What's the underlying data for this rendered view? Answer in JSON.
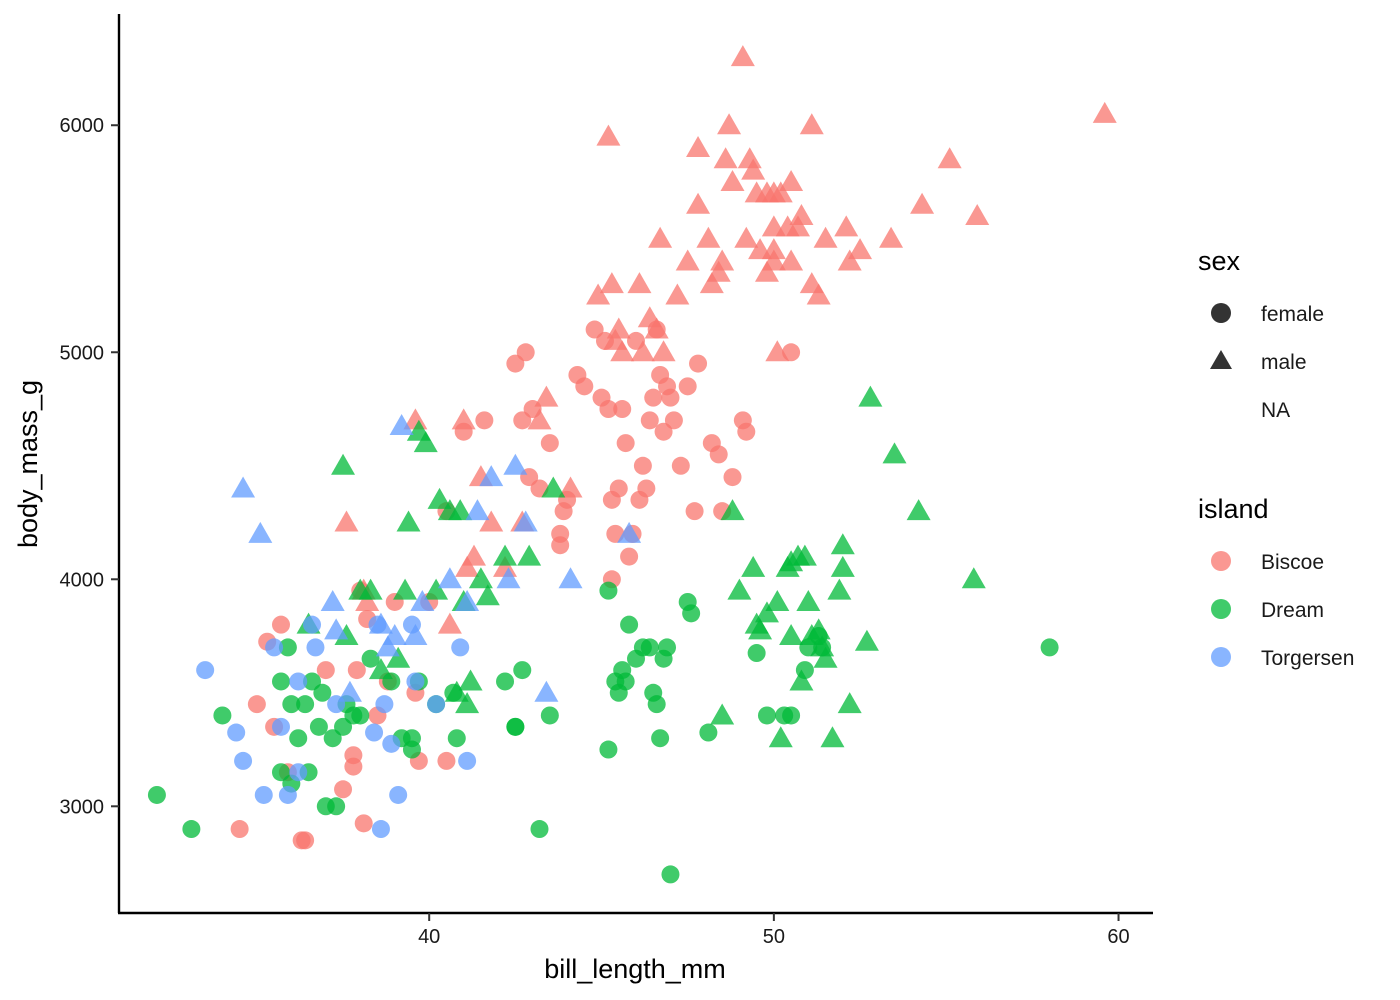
{
  "chart_data": {
    "type": "scatter",
    "xlabel": "bill_length_mm",
    "ylabel": "body_mass_g",
    "x_ticks": [
      40,
      50,
      60
    ],
    "y_ticks": [
      3000,
      4000,
      5000,
      6000
    ],
    "xlim": [
      31.0,
      61.0
    ],
    "ylim": [
      2530,
      6490
    ],
    "grid": false,
    "colors": {
      "Biscoe": "#F8766D",
      "Dream": "#00BA38",
      "Torgersen": "#619CFF"
    },
    "legend_sex": {
      "title": "sex",
      "items": [
        {
          "label": "female",
          "shape": "circle"
        },
        {
          "label": "male",
          "shape": "triangle"
        },
        {
          "label": "NA",
          "shape": "none"
        }
      ]
    },
    "legend_island": {
      "title": "island",
      "items": [
        "Biscoe",
        "Dream",
        "Torgersen"
      ]
    },
    "series": [
      {
        "name": "Biscoe",
        "sex": "female",
        "x": [
          34.5,
          35.0,
          35.3,
          35.5,
          35.7,
          35.9,
          36.3,
          36.4,
          37.0,
          37.5,
          37.8,
          37.8,
          37.9,
          38.0,
          38.1,
          38.2,
          38.5,
          38.8,
          39.0,
          39.6,
          39.7,
          40.0,
          40.5,
          40.5,
          41.0,
          41.6,
          42.5,
          42.7,
          42.8,
          42.9,
          43.0,
          43.2,
          43.5,
          43.8,
          43.8,
          43.9,
          44.0,
          44.3,
          44.5,
          44.8,
          45.0,
          45.1,
          45.2,
          45.3,
          45.3,
          45.4,
          45.5,
          45.6,
          45.7,
          45.8,
          45.9,
          46.0,
          46.1,
          46.2,
          46.3,
          46.4,
          46.5,
          46.6,
          46.7,
          46.8,
          46.9,
          47.0,
          47.1,
          47.3,
          47.5,
          47.7,
          47.8,
          48.2,
          48.4,
          48.5,
          48.8,
          49.1,
          49.2,
          50.5
        ],
        "y": [
          2900,
          3450,
          3725,
          3350,
          3800,
          3150,
          2850,
          2850,
          3600,
          3075,
          3225,
          3175,
          3600,
          3950,
          2925,
          3825,
          3400,
          3550,
          3900,
          3500,
          3200,
          3900,
          4300,
          3200,
          4650,
          4700,
          4950,
          4700,
          5000,
          4450,
          4750,
          4400,
          4600,
          4150,
          4200,
          4300,
          4350,
          4900,
          4850,
          5100,
          4800,
          5050,
          4750,
          4000,
          4350,
          4200,
          4400,
          4750,
          4600,
          4100,
          4200,
          5050,
          4350,
          4500,
          4400,
          4700,
          4800,
          5100,
          4900,
          4650,
          4850,
          4800,
          4700,
          4500,
          4850,
          4300,
          4950,
          4600,
          4550,
          4300,
          4450,
          4700,
          4650,
          5000
        ]
      },
      {
        "name": "Biscoe",
        "sex": "male",
        "x": [
          37.6,
          38.1,
          38.2,
          39.6,
          40.6,
          41.0,
          41.1,
          41.3,
          41.5,
          41.8,
          42.2,
          42.7,
          43.2,
          43.4,
          44.1,
          44.9,
          45.2,
          45.3,
          45.4,
          45.5,
          45.6,
          46.1,
          46.2,
          46.4,
          46.6,
          46.7,
          46.8,
          47.2,
          47.5,
          47.8,
          47.8,
          48.1,
          48.2,
          48.4,
          48.5,
          48.6,
          48.7,
          48.8,
          49.1,
          49.2,
          49.3,
          49.4,
          49.5,
          49.6,
          49.8,
          49.8,
          50.0,
          50.0,
          50.0,
          50.0,
          50.1,
          50.2,
          50.4,
          50.5,
          50.5,
          50.7,
          50.8,
          51.1,
          51.1,
          51.3,
          51.5,
          52.1,
          52.2,
          52.5,
          53.4,
          54.3,
          55.1,
          55.9,
          59.6
        ],
        "y": [
          4250,
          3950,
          3900,
          4700,
          3800,
          4700,
          4050,
          4100,
          4450,
          4250,
          4050,
          4250,
          4700,
          4800,
          4400,
          5250,
          5950,
          5300,
          5050,
          5100,
          5000,
          5300,
          5000,
          5150,
          5100,
          5500,
          5000,
          5250,
          5400,
          5650,
          5900,
          5500,
          5300,
          5350,
          5400,
          5850,
          6000,
          5750,
          6300,
          5500,
          5850,
          5800,
          5700,
          5450,
          5350,
          5700,
          5400,
          5450,
          5550,
          5700,
          5000,
          5700,
          5550,
          5750,
          5400,
          5550,
          5600,
          5300,
          6000,
          5250,
          5500,
          5550,
          5400,
          5450,
          5500,
          5650,
          5850,
          5600,
          6050
        ]
      },
      {
        "name": "Dream",
        "sex": "female",
        "x": [
          32.1,
          33.1,
          34.0,
          35.7,
          35.7,
          35.9,
          36.0,
          36.0,
          36.2,
          36.4,
          36.5,
          36.6,
          36.8,
          36.9,
          37.0,
          37.2,
          37.3,
          37.5,
          37.6,
          37.8,
          38.0,
          38.3,
          38.9,
          39.2,
          39.5,
          39.5,
          39.7,
          40.2,
          40.7,
          40.8,
          42.2,
          42.5,
          42.5,
          42.7,
          43.2,
          43.5,
          45.2,
          45.2,
          45.4,
          45.5,
          45.6,
          45.7,
          45.8,
          46.0,
          46.2,
          46.4,
          46.5,
          46.6,
          46.7,
          46.8,
          46.9,
          47.0,
          47.5,
          47.6,
          48.1,
          49.5,
          49.8,
          50.3,
          50.5,
          50.9,
          51.0,
          51.3,
          51.4,
          58.0
        ],
        "y": [
          3050,
          2900,
          3400,
          3150,
          3550,
          3700,
          3450,
          3100,
          3300,
          3450,
          3150,
          3550,
          3350,
          3500,
          3000,
          3300,
          3000,
          3350,
          3450,
          3400,
          3400,
          3650,
          3550,
          3300,
          3300,
          3250,
          3550,
          3450,
          3500,
          3300,
          3550,
          3350,
          3350,
          3600,
          2900,
          3400,
          3950,
          3250,
          3550,
          3500,
          3600,
          3550,
          3800,
          3650,
          3700,
          3700,
          3500,
          3450,
          3300,
          3650,
          3700,
          2700,
          3900,
          3850,
          3325,
          3675,
          3400,
          3400,
          3400,
          3600,
          3700,
          3750,
          3700,
          3700
        ]
      },
      {
        "name": "Dream",
        "sex": "male",
        "x": [
          36.5,
          37.5,
          37.6,
          38.0,
          38.3,
          38.6,
          39.1,
          39.3,
          39.4,
          39.7,
          39.9,
          40.2,
          40.3,
          40.6,
          40.8,
          40.9,
          41.0,
          41.1,
          41.2,
          41.5,
          41.7,
          42.2,
          42.9,
          43.6,
          48.5,
          48.8,
          49.0,
          49.4,
          49.5,
          49.6,
          49.8,
          50.1,
          50.2,
          50.4,
          50.5,
          50.5,
          50.7,
          50.8,
          50.9,
          51.0,
          51.1,
          51.3,
          51.4,
          51.5,
          51.7,
          51.9,
          52.0,
          52.0,
          52.2,
          52.7,
          52.8,
          53.5,
          54.2,
          55.8
        ],
        "y": [
          3800,
          4500,
          3750,
          3950,
          3950,
          3600,
          3650,
          3950,
          4250,
          4650,
          4600,
          3950,
          4350,
          4300,
          3500,
          4300,
          3900,
          3450,
          3550,
          4000,
          3925,
          4100,
          4100,
          4400,
          3400,
          4300,
          3950,
          4050,
          3800,
          3775,
          3850,
          3900,
          3300,
          4050,
          3750,
          4075,
          4100,
          3550,
          4100,
          3900,
          3750,
          3775,
          3700,
          3650,
          3300,
          3950,
          4050,
          4150,
          3450,
          3725,
          4800,
          4550,
          4300,
          4000
        ]
      },
      {
        "name": "Torgersen",
        "sex": "female",
        "x": [
          33.5,
          34.4,
          34.6,
          35.2,
          35.5,
          35.7,
          35.9,
          36.2,
          36.2,
          36.6,
          36.7,
          37.3,
          38.4,
          38.5,
          38.6,
          38.7,
          38.9,
          39.1,
          39.5,
          39.6,
          40.2,
          40.9,
          41.1
        ],
        "y": [
          3600,
          3325,
          3200,
          3050,
          3700,
          3350,
          3050,
          3550,
          3150,
          3800,
          3700,
          3450,
          3325,
          3800,
          2900,
          3450,
          3275,
          3050,
          3800,
          3550,
          3450,
          3700,
          3200
        ]
      },
      {
        "name": "Torgersen",
        "sex": "male",
        "x": [
          34.6,
          35.1,
          37.2,
          37.3,
          37.7,
          38.6,
          38.8,
          39.0,
          39.2,
          39.6,
          39.8,
          40.6,
          41.1,
          41.4,
          41.8,
          42.3,
          42.5,
          42.8,
          43.4,
          44.1,
          45.8
        ],
        "y": [
          4400,
          4200,
          3900,
          3775,
          3500,
          3800,
          3700,
          3750,
          4675,
          3750,
          3900,
          4000,
          3900,
          4300,
          4450,
          4000,
          4500,
          4250,
          3500,
          4000,
          4200
        ]
      }
    ]
  }
}
